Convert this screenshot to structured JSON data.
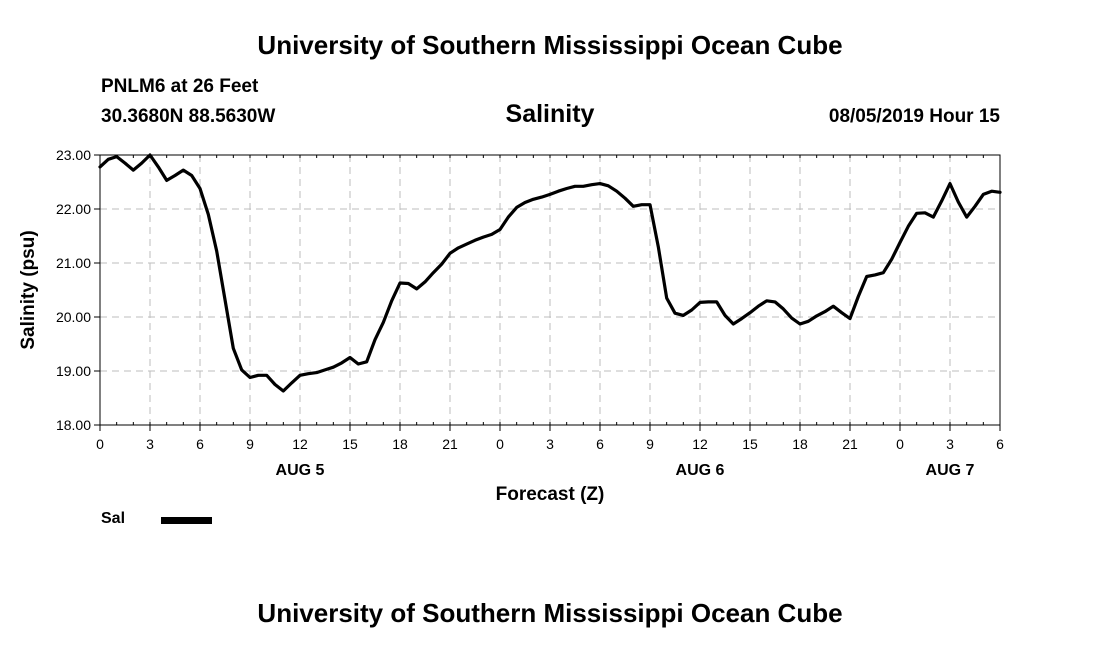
{
  "header": {
    "title": "University of Southern Mississippi Ocean Cube",
    "station": "PNLM6 at 26 Feet",
    "coordinates": "30.3680N 88.5630W",
    "chart_title": "Salinity",
    "datetime": "08/05/2019 Hour 15"
  },
  "footer": {
    "title": "University of Southern Mississippi Ocean Cube"
  },
  "legend": {
    "label": "Sal",
    "color": "#000000"
  },
  "chart_data": {
    "type": "line",
    "title": "Salinity",
    "xlabel": "Forecast (Z)",
    "ylabel": "Salinity (psu)",
    "ylim": [
      18.0,
      23.0
    ],
    "yticks": [
      "18.00",
      "19.00",
      "20.00",
      "21.00",
      "22.00",
      "23.00"
    ],
    "xlim_hours": [
      0,
      54
    ],
    "xtick_labels": [
      "0",
      "3",
      "6",
      "9",
      "12",
      "15",
      "18",
      "21",
      "0",
      "3",
      "6",
      "9",
      "12",
      "15",
      "18",
      "21",
      "0",
      "3",
      "6"
    ],
    "date_labels": [
      {
        "label": "AUG 5",
        "hour": 12
      },
      {
        "label": "AUG 6",
        "hour": 36
      },
      {
        "label": "AUG 7",
        "hour": 51
      }
    ],
    "grid": true,
    "legend_position": "bottom-left",
    "series": [
      {
        "name": "Sal",
        "color": "#000000",
        "x": [
          0,
          0.5,
          1,
          1.5,
          2,
          2.5,
          3,
          3.5,
          4,
          4.5,
          5,
          5.5,
          6,
          6.5,
          7,
          7.5,
          8,
          8.5,
          9,
          9.5,
          10,
          10.5,
          11,
          11.5,
          12,
          12.5,
          13,
          13.5,
          14,
          14.5,
          15,
          15.5,
          16,
          16.5,
          17,
          17.5,
          18,
          18.5,
          19,
          19.5,
          20,
          20.5,
          21,
          21.5,
          22,
          22.5,
          23,
          23.5,
          24,
          24.5,
          25,
          25.5,
          26,
          26.5,
          27,
          27.5,
          28,
          28.5,
          29,
          29.5,
          30,
          30.5,
          31,
          31.5,
          32,
          32.5,
          33,
          33.5,
          34,
          34.5,
          35,
          35.5,
          36,
          36.5,
          37,
          37.5,
          38,
          38.5,
          39,
          39.5,
          40,
          40.5,
          41,
          41.5,
          42,
          42.5,
          43,
          43.5,
          44,
          44.5,
          45,
          45.5,
          46,
          46.5,
          47,
          47.5,
          48,
          48.5,
          49,
          49.5,
          50,
          50.5,
          51,
          51.5,
          52,
          52.5,
          53,
          53.5,
          54
        ],
        "values": [
          22.78,
          22.92,
          22.97,
          22.85,
          22.72,
          22.85,
          23.0,
          22.78,
          22.53,
          22.62,
          22.72,
          22.62,
          22.38,
          21.9,
          21.22,
          20.32,
          19.42,
          19.02,
          18.88,
          18.92,
          18.92,
          18.75,
          18.63,
          18.78,
          18.92,
          18.95,
          18.97,
          19.02,
          19.07,
          19.15,
          19.25,
          19.13,
          19.17,
          19.58,
          19.9,
          20.3,
          20.63,
          20.62,
          20.52,
          20.65,
          20.82,
          20.98,
          21.18,
          21.28,
          21.35,
          21.42,
          21.48,
          21.53,
          21.62,
          21.85,
          22.03,
          22.12,
          22.18,
          22.22,
          22.27,
          22.33,
          22.38,
          22.42,
          22.42,
          22.45,
          22.47,
          22.43,
          22.33,
          22.2,
          22.05,
          22.08,
          22.08,
          21.3,
          20.35,
          20.07,
          20.03,
          20.13,
          20.27,
          20.28,
          20.28,
          20.03,
          19.87,
          19.97,
          20.08,
          20.2,
          20.3,
          20.28,
          20.15,
          19.98,
          19.87,
          19.92,
          20.02,
          20.1,
          20.2,
          20.08,
          19.97,
          20.38,
          20.75,
          20.78,
          20.82,
          21.07,
          21.38,
          21.68,
          21.92,
          21.93,
          21.85,
          22.15,
          22.47,
          22.13,
          21.85,
          22.05,
          22.27,
          22.33,
          22.31
        ]
      }
    ]
  }
}
